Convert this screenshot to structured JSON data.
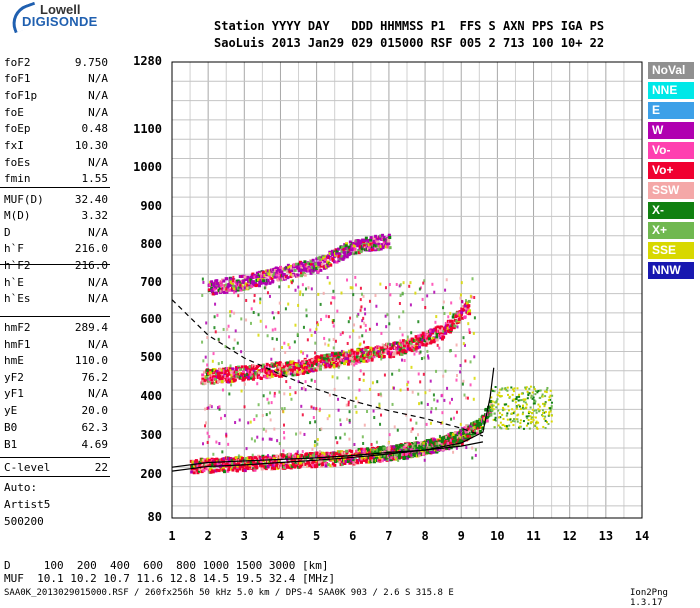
{
  "logo": {
    "line1": "Lowell",
    "line2": "DIGISONDE"
  },
  "header": {
    "line1": "Station YYYY DAY   DDD HHMMSS P1  FFS S AXN PPS IGA PS",
    "line2": "SaoLuis 2013 Jan29 029 015000 RSF 005 2 713 100 10+ 22"
  },
  "params": [
    {
      "key": "foF2",
      "value": "9.750"
    },
    {
      "key": "foF1",
      "value": "N/A"
    },
    {
      "key": "foF1p",
      "value": "N/A"
    },
    {
      "key": "foE",
      "value": "N/A"
    },
    {
      "key": "foEp",
      "value": "0.48"
    },
    {
      "key": "fxI",
      "value": "10.30"
    },
    {
      "key": "foEs",
      "value": "N/A"
    },
    {
      "key": "fmin",
      "value": "1.55"
    },
    {
      "key": "MUF(D)",
      "value": "32.40"
    },
    {
      "key": "M(D)",
      "value": "3.32"
    },
    {
      "key": "D",
      "value": "N/A"
    },
    {
      "key": "h`F",
      "value": "216.0"
    },
    {
      "key": "h`F2",
      "value": "216.0"
    },
    {
      "key": "h`E",
      "value": "N/A"
    },
    {
      "key": "h`Es",
      "value": "N/A"
    },
    {
      "key": "hmF2",
      "value": "289.4"
    },
    {
      "key": "hmF1",
      "value": "N/A"
    },
    {
      "key": "hmE",
      "value": "110.0"
    },
    {
      "key": "yF2",
      "value": "76.2"
    },
    {
      "key": "yF1",
      "value": "N/A"
    },
    {
      "key": "yE",
      "value": "20.0"
    },
    {
      "key": "B0",
      "value": "62.3"
    },
    {
      "key": "B1",
      "value": "4.69"
    },
    {
      "key": "C-level",
      "value": "22"
    }
  ],
  "auto": {
    "line1": "Auto:",
    "line2": "Artist5",
    "line3": "500200"
  },
  "legend": [
    {
      "label": "NoVal",
      "bg": "#909090",
      "fg": "#ffffff"
    },
    {
      "label": "NNE",
      "bg": "#00e8e8",
      "fg": "#ffffff"
    },
    {
      "label": "E",
      "bg": "#3ca0e8",
      "fg": "#ffffff"
    },
    {
      "label": "W",
      "bg": "#b000b0",
      "fg": "#ffffff"
    },
    {
      "label": "Vo-",
      "bg": "#ff40b0",
      "fg": "#ffffff"
    },
    {
      "label": "Vo+",
      "bg": "#f00030",
      "fg": "#ffffff"
    },
    {
      "label": "SSW",
      "bg": "#f4a8a8",
      "fg": "#ffffff"
    },
    {
      "label": "X-",
      "bg": "#108010",
      "fg": "#ffffff"
    },
    {
      "label": "X+",
      "bg": "#70b850",
      "fg": "#ffffff"
    },
    {
      "label": "SSE",
      "bg": "#d8d800",
      "fg": "#ffffff"
    },
    {
      "label": "NNW",
      "bg": "#1818b0",
      "fg": "#ffffff"
    }
  ],
  "bottom": {
    "d_row": "D     100  200  400  600  800 1000 1500 3000 [km]",
    "muf_row": "MUF  10.1 10.2 10.7 11.6 12.8 14.5 19.5 32.4 [MHz]"
  },
  "footer": {
    "left": "SAA0K_2013029015000.RSF / 260fx256h 50 kHz 5.0 km / DPS-4 SAA0K 903 / 2.6 S 315.8 E",
    "right": "Ion2Png 1.3.17"
  },
  "chart_data": {
    "type": "scatter",
    "title": "",
    "xlabel": "",
    "ylabel": "",
    "xlim": [
      1,
      14
    ],
    "ylim": [
      80,
      1280
    ],
    "xticks": [
      "1",
      "2",
      "3",
      "4",
      "5",
      "6",
      "7",
      "8",
      "9",
      "10",
      "11",
      "12",
      "13",
      "14"
    ],
    "yticks": [
      "80",
      "200",
      "300",
      "400",
      "500",
      "600",
      "700",
      "800",
      "900",
      "1000",
      "1100",
      "1280"
    ],
    "y_scale": "virtual-height (nonlinear)",
    "grid": true,
    "traces": [
      {
        "name": "O-trace F layer",
        "color": "#f00030",
        "points": [
          [
            1.5,
            225
          ],
          [
            2,
            228
          ],
          [
            3,
            232
          ],
          [
            4,
            238
          ],
          [
            5,
            243
          ],
          [
            6,
            250
          ],
          [
            7,
            260
          ],
          [
            8,
            275
          ],
          [
            8.5,
            285
          ],
          [
            9,
            300
          ],
          [
            9.3,
            320
          ]
        ]
      },
      {
        "name": "O-trace second hop",
        "color": "#f00030",
        "points": [
          [
            1.8,
            455
          ],
          [
            2.5,
            460
          ],
          [
            3.5,
            470
          ],
          [
            4.5,
            480
          ],
          [
            5.5,
            500
          ],
          [
            6.5,
            515
          ],
          [
            7.5,
            535
          ],
          [
            8.5,
            575
          ],
          [
            9.2,
            640
          ]
        ]
      },
      {
        "name": "X-trace",
        "color": "#108010",
        "points": [
          [
            6.5,
            255
          ],
          [
            7.5,
            265
          ],
          [
            8.5,
            285
          ],
          [
            9.5,
            330
          ],
          [
            9.8,
            380
          ]
        ]
      },
      {
        "name": "third hop",
        "color": "#b000b0",
        "points": [
          [
            2,
            690
          ],
          [
            3,
            705
          ],
          [
            4,
            730
          ],
          [
            5,
            750
          ],
          [
            6,
            800
          ],
          [
            7,
            815
          ]
        ]
      }
    ],
    "model_profile": [
      [
        1,
        210
      ],
      [
        2,
        222
      ],
      [
        3,
        226
      ],
      [
        4,
        232
      ],
      [
        5,
        238
      ],
      [
        6,
        245
      ],
      [
        7,
        254
      ],
      [
        8,
        264
      ],
      [
        9,
        282
      ],
      [
        9.6,
        310
      ],
      [
        9.8,
        400
      ],
      [
        9.9,
        475
      ]
    ],
    "dashed_curve": [
      [
        1,
        655
      ],
      [
        2,
        560
      ],
      [
        3,
        500
      ],
      [
        4,
        458
      ],
      [
        5,
        420
      ],
      [
        6,
        390
      ],
      [
        7,
        365
      ],
      [
        8,
        345
      ],
      [
        9,
        320
      ],
      [
        9.6,
        300
      ]
    ],
    "lower_profile": [
      [
        1,
        220
      ],
      [
        2,
        232
      ],
      [
        3,
        236
      ],
      [
        4,
        240
      ],
      [
        5,
        244
      ],
      [
        6,
        250
      ],
      [
        7,
        258
      ],
      [
        8,
        264
      ],
      [
        9,
        274
      ],
      [
        9.6,
        285
      ]
    ]
  }
}
